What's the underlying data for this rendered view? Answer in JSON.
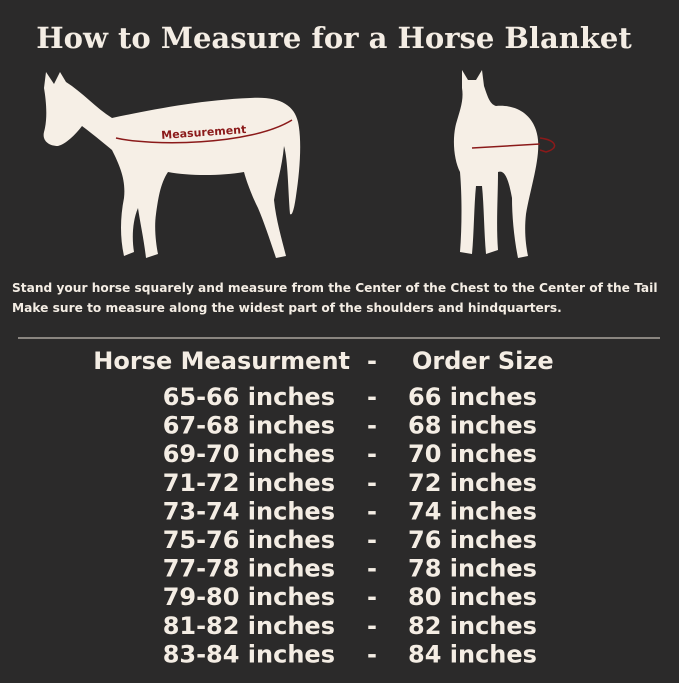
{
  "title": "How to Measure for a Horse Blanket",
  "diagram_label": "Measurement",
  "instructions": [
    "Stand your horse squarely and measure from the Center of the Chest to the Center of the Tail",
    "Make sure to measure along the widest part of the shoulders and hindquarters."
  ],
  "table": {
    "header": [
      "Horse Measurment",
      "-",
      "Order Size"
    ],
    "rows": [
      [
        "65-66 inches",
        "-",
        "66 inches"
      ],
      [
        "67-68 inches",
        "-",
        "68 inches"
      ],
      [
        "69-70 inches",
        "-",
        "70 inches"
      ],
      [
        "71-72 inches",
        "-",
        "72 inches"
      ],
      [
        "73-74 inches",
        "-",
        "74 inches"
      ],
      [
        "75-76 inches",
        "-",
        "76 inches"
      ],
      [
        "77-78 inches",
        "-",
        "78 inches"
      ],
      [
        "79-80 inches",
        "-",
        "80 inches"
      ],
      [
        "81-82 inches",
        "-",
        "82 inches"
      ],
      [
        "83-84 inches",
        "-",
        "84 inches"
      ]
    ]
  }
}
